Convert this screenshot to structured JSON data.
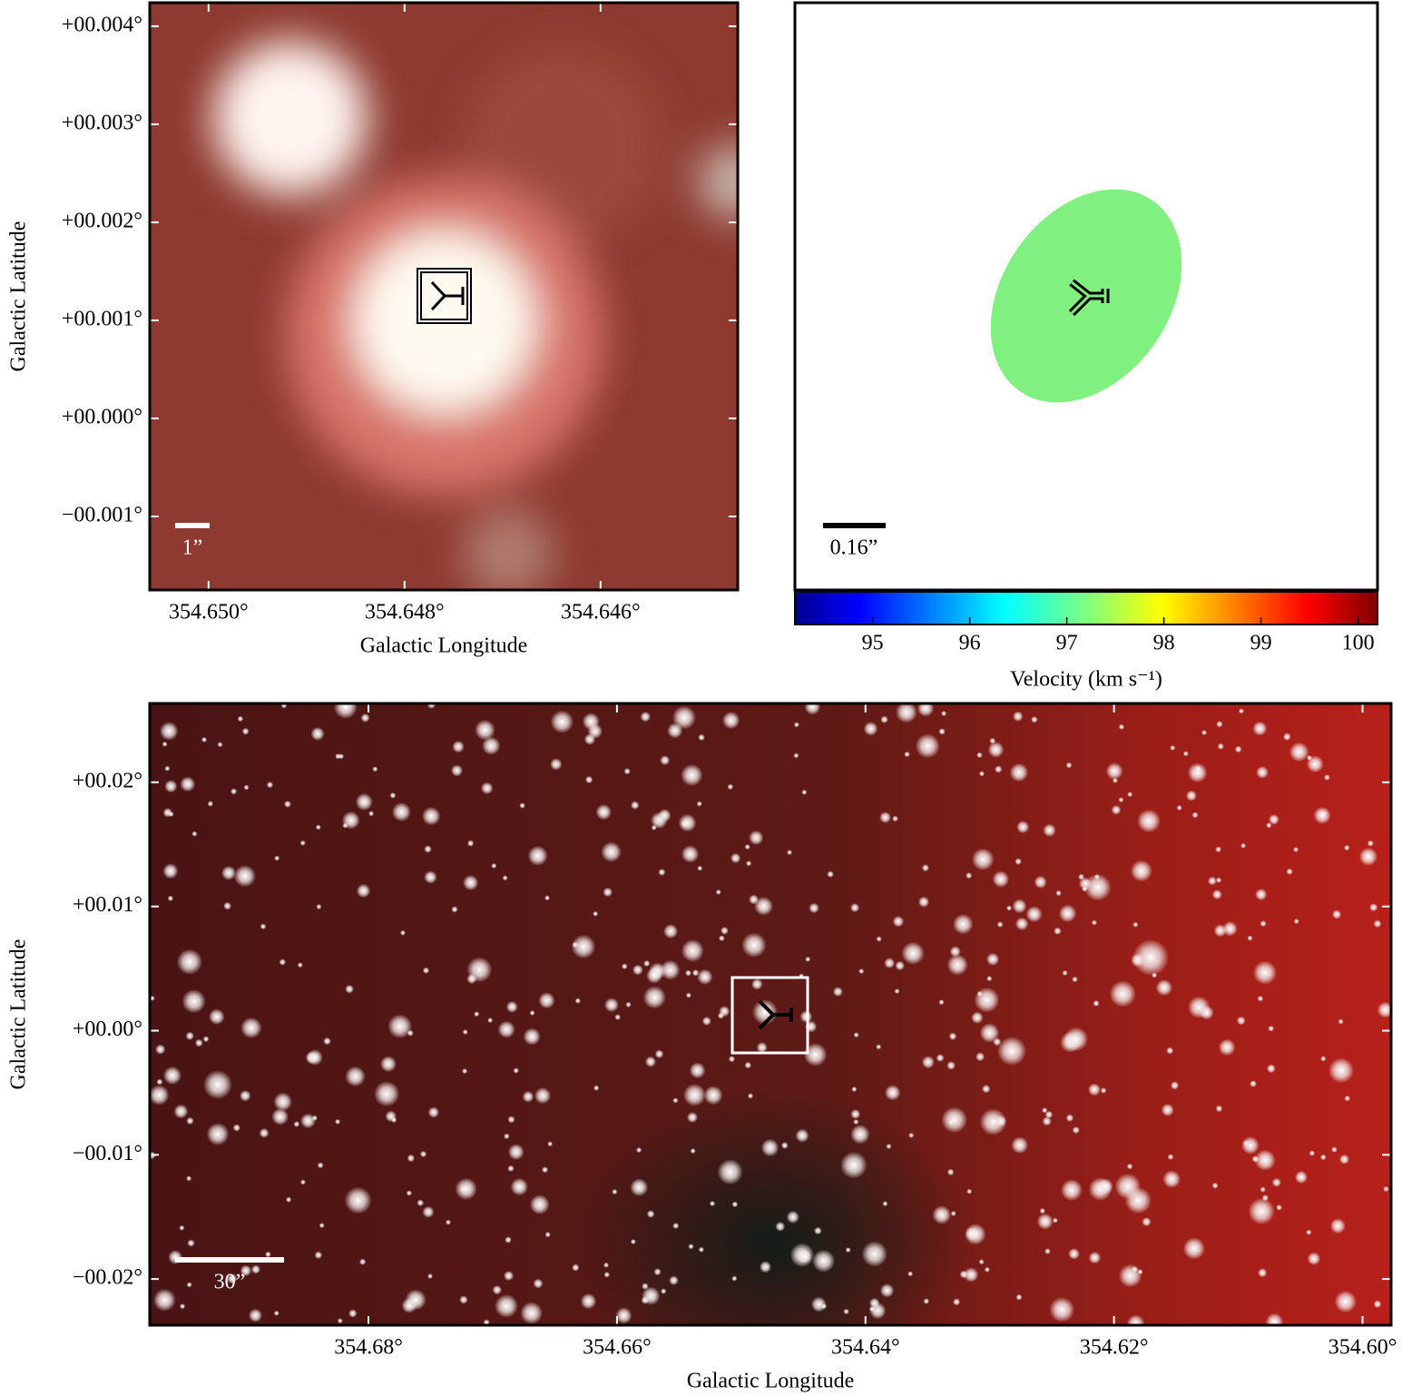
{
  "chart_data": [
    {
      "type": "image",
      "xlabel": "Galactic Longitude",
      "ylabel": "Galactic Latitude",
      "xlim": [
        354.6506,
        354.6446
      ],
      "xticks": [
        {
          "value": 354.65,
          "label": "354.650°"
        },
        {
          "value": 354.648,
          "label": "354.648°"
        },
        {
          "value": 354.646,
          "label": "354.646°"
        }
      ],
      "ylim": [
        -0.00175,
        0.00424
      ],
      "yticks": [
        {
          "value": -0.001,
          "label": "−00.001°"
        },
        {
          "value": 0,
          "label": "+00.000°"
        },
        {
          "value": 0.001,
          "label": "+00.001°"
        },
        {
          "value": 0.002,
          "label": "+00.002°"
        },
        {
          "value": 0.003,
          "label": "+00.003°"
        },
        {
          "value": 0.004,
          "label": "+00.004°"
        }
      ],
      "scalebar_label": "1”"
    },
    {
      "type": "velocity-map",
      "scalebar_label": "0.16”",
      "colorbar": {
        "label": "Velocity (km s⁻¹)",
        "clim": [
          94.2,
          100.2
        ],
        "ticks": [
          95,
          96,
          97,
          98,
          99,
          100
        ]
      }
    },
    {
      "type": "image",
      "xlabel": "Galactic Longitude",
      "ylabel": "Galactic Latitude",
      "xlim": [
        354.6976,
        354.5977
      ],
      "xticks": [
        {
          "value": 354.68,
          "label": "354.68°"
        },
        {
          "value": 354.66,
          "label": "354.66°"
        },
        {
          "value": 354.64,
          "label": "354.64°"
        },
        {
          "value": 354.62,
          "label": "354.62°"
        },
        {
          "value": 354.6,
          "label": "354.60°"
        }
      ],
      "ylim": [
        -0.02372,
        0.02635
      ],
      "yticks": [
        {
          "value": -0.02,
          "label": "−00.02°"
        },
        {
          "value": -0.01,
          "label": "−00.01°"
        },
        {
          "value": 0,
          "label": "+00.00°"
        },
        {
          "value": 0.01,
          "label": "+00.01°"
        },
        {
          "value": 0.02,
          "label": "+00.02°"
        }
      ],
      "scalebar_label": "30”"
    }
  ]
}
